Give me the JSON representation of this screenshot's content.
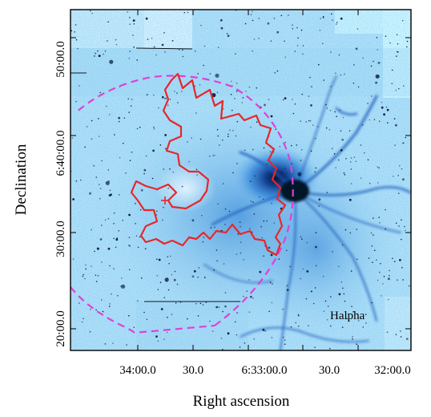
{
  "figure": {
    "x_axis": {
      "title": "Right ascension",
      "tick_labels": [
        "34:00.0",
        "30.0",
        "6:33:00.0",
        "30.0",
        "32:00.0"
      ]
    },
    "y_axis": {
      "title": "Declination",
      "tick_labels": [
        "50:00.0",
        "6:40:00.0",
        "30:00.0",
        "20:00.0"
      ]
    },
    "band_label": "Halpha",
    "colors": {
      "sky_background": "#aee0f8",
      "nebula_emission": "#1b63c6",
      "bright_core": "#0a1a40",
      "red_contour": "#e8262a",
      "dashed_ellipse": "#e040d8",
      "frame": "#000000"
    }
  }
}
